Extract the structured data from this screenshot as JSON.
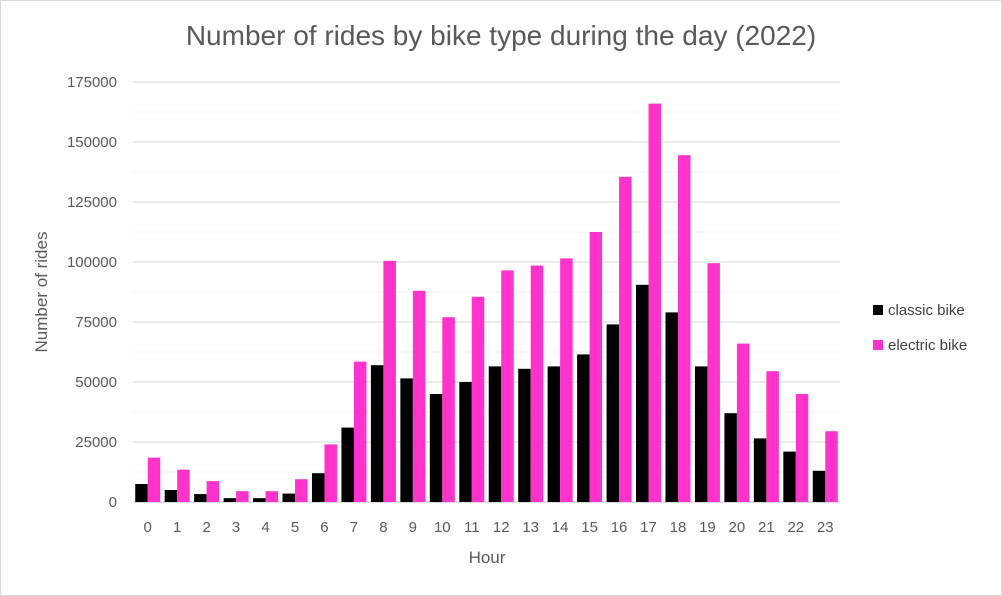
{
  "chart_data": {
    "type": "bar",
    "title": "Number of rides by bike type during the day (2022)",
    "xlabel": "Hour",
    "ylabel": "Number of rides",
    "categories": [
      "0",
      "1",
      "2",
      "3",
      "4",
      "5",
      "6",
      "7",
      "8",
      "9",
      "10",
      "11",
      "12",
      "13",
      "14",
      "15",
      "16",
      "17",
      "18",
      "19",
      "20",
      "21",
      "22",
      "23"
    ],
    "series": [
      {
        "name": "classic bike",
        "color": "#000000",
        "values": [
          7500,
          5000,
          3300,
          1600,
          1600,
          3500,
          12000,
          31000,
          57000,
          51500,
          45000,
          50000,
          56500,
          55500,
          56500,
          61500,
          74000,
          90500,
          79000,
          56500,
          37000,
          26500,
          21000,
          13000
        ]
      },
      {
        "name": "electric bike",
        "color": "#ff33cc",
        "values": [
          18500,
          13500,
          8700,
          4500,
          4500,
          9500,
          24000,
          58500,
          100500,
          88000,
          77000,
          85500,
          96500,
          98500,
          101500,
          112500,
          135500,
          166000,
          144500,
          99500,
          66000,
          54500,
          45000,
          29500
        ]
      }
    ],
    "ylim": [
      0,
      175000
    ],
    "yticks": [
      0,
      25000,
      50000,
      75000,
      100000,
      125000,
      150000,
      175000
    ],
    "ytick_labels": [
      "0",
      "25000",
      "50000",
      "75000",
      "100000",
      "125000",
      "150000",
      "175000"
    ],
    "grid": true,
    "minor_grid": true,
    "legend_position": "right"
  }
}
